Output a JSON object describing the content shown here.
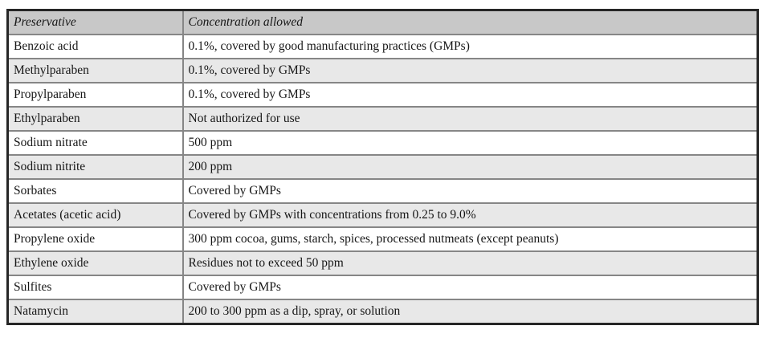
{
  "table": {
    "columns": [
      {
        "label": "Preservative"
      },
      {
        "label": "Concentration allowed"
      }
    ],
    "rows": [
      {
        "preservative": "Benzoic acid",
        "concentration": "0.1%, covered by good manufacturing practices (GMPs)"
      },
      {
        "preservative": "Methylparaben",
        "concentration": "0.1%, covered by GMPs"
      },
      {
        "preservative": "Propylparaben",
        "concentration": "0.1%, covered by GMPs"
      },
      {
        "preservative": "Ethylparaben",
        "concentration": "Not authorized for use"
      },
      {
        "preservative": "Sodium nitrate",
        "concentration": "500 ppm"
      },
      {
        "preservative": "Sodium nitrite",
        "concentration": "200 ppm"
      },
      {
        "preservative": "Sorbates",
        "concentration": "Covered by GMPs"
      },
      {
        "preservative": "Acetates (acetic acid)",
        "concentration": "Covered by GMPs with concentrations from 0.25 to 9.0%"
      },
      {
        "preservative": "Propylene oxide",
        "concentration": "300 ppm cocoa, gums, starch, spices, processed nutmeats (except peanuts)"
      },
      {
        "preservative": "Ethylene oxide",
        "concentration": "Residues not to exceed 50 ppm"
      },
      {
        "preservative": "Sulfites",
        "concentration": "Covered by GMPs"
      },
      {
        "preservative": "Natamycin",
        "concentration": "200 to 300 ppm as a dip, spray, or solution"
      }
    ]
  },
  "colors": {
    "header_bg": "#c8c8c8",
    "row_bg": "#ffffff",
    "row_alt_bg": "#e8e8e8",
    "outer_border": "#262626",
    "inner_border": "#868686",
    "text_color": "#161616",
    "page_bg": "#ffffff"
  }
}
